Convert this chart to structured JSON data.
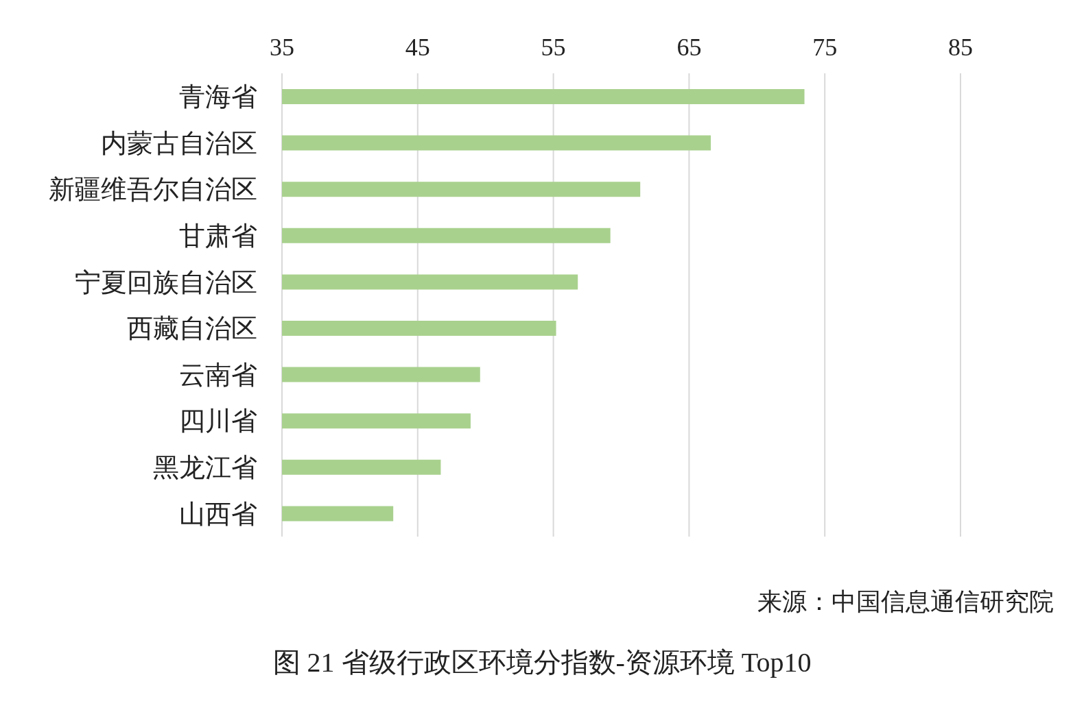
{
  "chart_data": {
    "type": "bar",
    "orientation": "horizontal",
    "title": "图 21 省级行政区环境分指数-资源环境 Top10",
    "annotations": [
      "来源：中国信息通信研究院"
    ],
    "categories": [
      "青海省",
      "内蒙古自治区",
      "新疆维吾尔自治区",
      "甘肃省",
      "宁夏回族自治区",
      "西藏自治区",
      "云南省",
      "四川省",
      "黑龙江省",
      "山西省"
    ],
    "values": [
      73.5,
      66.6,
      61.4,
      59.2,
      56.8,
      55.2,
      49.6,
      48.9,
      46.7,
      43.2
    ],
    "color": "#a9d18e",
    "xlim": [
      35,
      85
    ],
    "xticks": [
      35,
      45,
      55,
      65,
      75,
      85
    ],
    "grid": "x"
  }
}
